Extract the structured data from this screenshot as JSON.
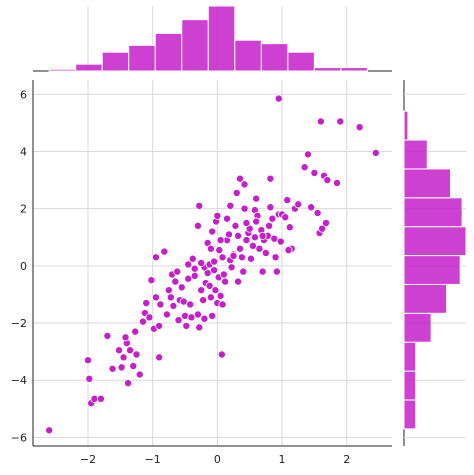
{
  "chart_data": {
    "type": "scatter",
    "kind": "joint-plot",
    "title": "",
    "xlabel": "",
    "ylabel": "",
    "xlim": [
      -2.85,
      2.7
    ],
    "ylim": [
      -6.3,
      6.5
    ],
    "x_ticks": [
      -2,
      -1,
      0,
      1,
      2
    ],
    "y_ticks": [
      -6,
      -4,
      -2,
      0,
      2,
      4,
      6
    ],
    "x_tick_labels": [
      "−2",
      "−1",
      "0",
      "1",
      "2"
    ],
    "y_tick_labels": [
      "−6",
      "−4",
      "−2",
      "0",
      "2",
      "4",
      "6"
    ],
    "grid": true,
    "color": "#c41fc9",
    "edge_color": "#ffffff",
    "x_marginal_histogram": {
      "bin_edges": [
        -2.6,
        -2.19,
        -1.78,
        -1.37,
        -0.96,
        -0.55,
        -0.14,
        0.27,
        0.68,
        1.09,
        1.5,
        1.91,
        2.32
      ],
      "counts": [
        1,
        4,
        11,
        15,
        22,
        30,
        38,
        18,
        16,
        11,
        2,
        2
      ]
    },
    "y_marginal_histogram": {
      "bin_edges": [
        -5.7,
        -4.69,
        -3.68,
        -2.67,
        -1.66,
        -0.65,
        0.36,
        1.37,
        2.38,
        3.39,
        4.4,
        5.41
      ],
      "counts": [
        6,
        6,
        6,
        14,
        22,
        29,
        32,
        30,
        24,
        12,
        2,
        7
      ]
    },
    "points": [
      [
        -2.6,
        -5.75
      ],
      [
        -1.95,
        -4.8
      ],
      [
        -1.9,
        -4.65
      ],
      [
        -1.8,
        -4.65
      ],
      [
        -1.98,
        -3.95
      ],
      [
        -2.0,
        -3.3
      ],
      [
        -1.7,
        -2.45
      ],
      [
        -1.62,
        -3.6
      ],
      [
        -1.52,
        -2.95
      ],
      [
        -1.48,
        -3.55
      ],
      [
        -1.45,
        -3.2
      ],
      [
        -1.4,
        -2.7
      ],
      [
        -1.42,
        -2.5
      ],
      [
        -1.38,
        -4.1
      ],
      [
        -1.35,
        -2.95
      ],
      [
        -1.3,
        -3.5
      ],
      [
        -1.27,
        -2.3
      ],
      [
        -1.25,
        -3.1
      ],
      [
        -1.2,
        -3.8
      ],
      [
        -1.15,
        -1.95
      ],
      [
        -1.12,
        -1.65
      ],
      [
        -1.1,
        -1.3
      ],
      [
        -1.05,
        -1.8
      ],
      [
        -1.02,
        -0.5
      ],
      [
        -0.98,
        -2.2
      ],
      [
        -0.95,
        -1.1
      ],
      [
        -0.9,
        -3.2
      ],
      [
        -0.9,
        -2.1
      ],
      [
        -0.88,
        -1.35
      ],
      [
        -0.95,
        0.3
      ],
      [
        -0.82,
        0.5
      ],
      [
        -0.78,
        -1.7
      ],
      [
        -0.75,
        -0.85
      ],
      [
        -0.72,
        -1.1
      ],
      [
        -0.7,
        -0.3
      ],
      [
        -0.68,
        -1.4
      ],
      [
        -0.65,
        -0.55
      ],
      [
        -0.62,
        -0.2
      ],
      [
        -0.6,
        -1.9
      ],
      [
        -0.58,
        -1.2
      ],
      [
        -0.55,
        -0.75
      ],
      [
        -0.52,
        -1.25
      ],
      [
        -0.5,
        -1.75
      ],
      [
        -0.48,
        -2.1
      ],
      [
        -0.45,
        0.05
      ],
      [
        -0.45,
        -0.45
      ],
      [
        -0.42,
        -1.35
      ],
      [
        -0.4,
        -1.8
      ],
      [
        -0.38,
        0.25
      ],
      [
        -0.35,
        -0.1
      ],
      [
        -0.3,
        -1.7
      ],
      [
        -0.28,
        -2.15
      ],
      [
        -0.25,
        -0.85
      ],
      [
        -0.22,
        -1.2
      ],
      [
        -0.2,
        -1.85
      ],
      [
        -0.18,
        -0.6
      ],
      [
        -0.15,
        -0.25
      ],
      [
        -0.12,
        -0.7
      ],
      [
        -0.1,
        -1.1
      ],
      [
        -0.08,
        -1.75
      ],
      [
        -0.05,
        -0.15
      ],
      [
        -0.03,
        -0.85
      ],
      [
        0.0,
        -1.3
      ],
      [
        0.02,
        -0.4
      ],
      [
        0.05,
        -1.05
      ],
      [
        0.07,
        -3.1
      ],
      [
        -0.3,
        1.4
      ],
      [
        -0.28,
        2.1
      ],
      [
        -0.2,
        -0.05
      ],
      [
        -0.15,
        0.8
      ],
      [
        -0.12,
        0.05
      ],
      [
        -0.1,
        0.6
      ],
      [
        -0.08,
        1.2
      ],
      [
        -0.02,
        1.55
      ],
      [
        0.0,
        1.75
      ],
      [
        0.03,
        0.55
      ],
      [
        0.08,
        0.3
      ],
      [
        0.1,
        -0.3
      ],
      [
        0.12,
        -0.55
      ],
      [
        0.15,
        0.9
      ],
      [
        0.18,
        1.1
      ],
      [
        0.2,
        0.2
      ],
      [
        0.22,
        -0.05
      ],
      [
        0.25,
        0.4
      ],
      [
        0.28,
        1.4
      ],
      [
        0.3,
        2.55
      ],
      [
        0.32,
        1.05
      ],
      [
        0.35,
        0.6
      ],
      [
        0.38,
        0.3
      ],
      [
        0.4,
        -0.2
      ],
      [
        0.42,
        2.0
      ],
      [
        0.45,
        0.9
      ],
      [
        0.48,
        1.15
      ],
      [
        0.5,
        1.3
      ],
      [
        0.52,
        0.25
      ],
      [
        0.55,
        0.7
      ],
      [
        0.58,
        1.95
      ],
      [
        0.6,
        2.35
      ],
      [
        0.62,
        1.75
      ],
      [
        0.65,
        0.6
      ],
      [
        0.68,
        1.25
      ],
      [
        0.7,
        -0.2
      ],
      [
        0.72,
        0.9
      ],
      [
        0.75,
        0.45
      ],
      [
        0.78,
        1.05
      ],
      [
        0.8,
        1.4
      ],
      [
        0.82,
        2.05
      ],
      [
        0.85,
        1.65
      ],
      [
        0.88,
        0.95
      ],
      [
        0.9,
        0.3
      ],
      [
        0.92,
        -0.2
      ],
      [
        0.95,
        1.8
      ],
      [
        0.98,
        0.85
      ],
      [
        1.0,
        1.8
      ],
      [
        1.05,
        1.7
      ],
      [
        1.08,
        2.3
      ],
      [
        1.12,
        1.35
      ],
      [
        1.15,
        0.6
      ],
      [
        1.2,
        2.0
      ],
      [
        1.25,
        2.15
      ],
      [
        1.35,
        3.45
      ],
      [
        1.4,
        3.9
      ],
      [
        1.45,
        2.05
      ],
      [
        1.5,
        3.25
      ],
      [
        1.55,
        1.85
      ],
      [
        1.58,
        1.15
      ],
      [
        1.62,
        1.3
      ],
      [
        1.65,
        3.15
      ],
      [
        1.68,
        1.5
      ],
      [
        1.6,
        5.05
      ],
      [
        1.85,
        2.9
      ],
      [
        1.9,
        5.05
      ],
      [
        2.2,
        4.85
      ],
      [
        2.45,
        3.95
      ],
      [
        0.95,
        5.85
      ],
      [
        0.35,
        3.05
      ],
      [
        0.42,
        2.85
      ],
      [
        0.82,
        3.05
      ],
      [
        1.7,
        3.0
      ],
      [
        0.6,
        1.55
      ],
      [
        0.25,
        0.35
      ],
      [
        -0.05,
        0.15
      ],
      [
        0.15,
        1.65
      ],
      [
        0.05,
        0.9
      ],
      [
        0.32,
        -0.55
      ],
      [
        0.45,
        1.5
      ],
      [
        0.7,
        1.05
      ],
      [
        1.1,
        0.55
      ],
      [
        -0.25,
        0.1
      ],
      [
        0.08,
        -1.35
      ],
      [
        -0.35,
        -0.35
      ],
      [
        0.58,
        1.0
      ],
      [
        0.2,
        2.1
      ]
    ]
  }
}
